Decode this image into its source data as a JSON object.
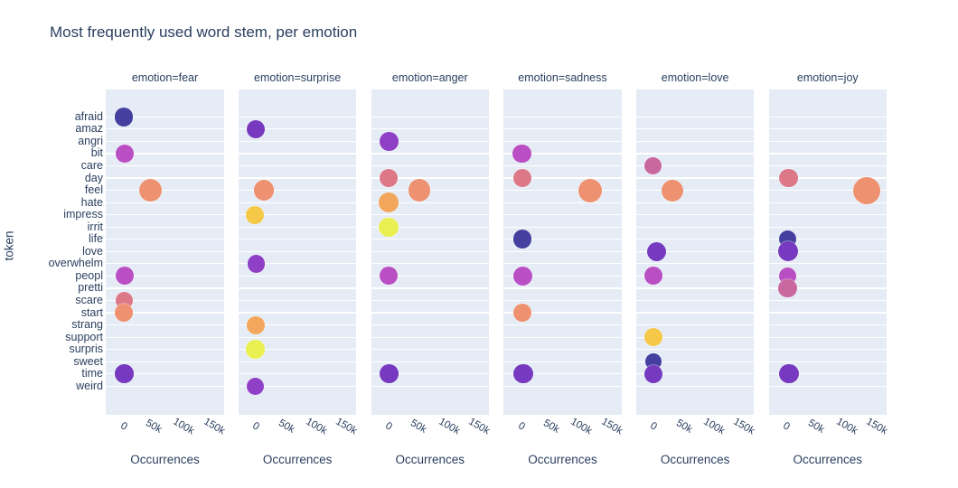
{
  "chart_data": {
    "type": "scatter",
    "title": "Most frequently used word stem, per emotion",
    "xlabel": "Occurrences",
    "ylabel": "token",
    "grid": "horizontal-white-lines",
    "legend": "none",
    "plot_bg": "#e5ecf6",
    "grid_color": "#ffffff",
    "text_color": "#2a3f5f",
    "xlim": [
      -23100,
      172400
    ],
    "x_ticks": [
      {
        "label": "0",
        "value": 0
      },
      {
        "label": "50k",
        "value": 50000
      },
      {
        "label": "100k",
        "value": 100000
      },
      {
        "label": "150k",
        "value": 150000
      }
    ],
    "y_categories": [
      "afraid",
      "amaz",
      "angri",
      "bit",
      "care",
      "day",
      "feel",
      "hate",
      "impress",
      "irrit",
      "life",
      "love",
      "overwhelm",
      "peopl",
      "pretti",
      "scare",
      "start",
      "strang",
      "support",
      "surpris",
      "sweet",
      "time",
      "weird"
    ],
    "marker_palette": [
      "#453fa0",
      "#7639bf",
      "#9040c6",
      "#b94fc3",
      "#c8689f",
      "#dc7888",
      "#ee9170",
      "#f2a75c",
      "#f5c947",
      "#ebf052"
    ],
    "facets": [
      {
        "label": "emotion=fear",
        "emotion": "fear",
        "points": [
          {
            "token": "afraid",
            "occurrences": 6500,
            "radius": 10.3
          },
          {
            "token": "bit",
            "occurrences": 8000,
            "radius": 10
          },
          {
            "token": "feel",
            "occurrences": 50000,
            "radius": 12.5
          },
          {
            "token": "peopl",
            "occurrences": 7500,
            "radius": 10
          },
          {
            "token": "scare",
            "occurrences": 6500,
            "radius": 9.5
          },
          {
            "token": "start",
            "occurrences": 6500,
            "radius": 10
          },
          {
            "token": "time",
            "occurrences": 7000,
            "radius": 10.3
          }
        ]
      },
      {
        "label": "emotion=surprise",
        "emotion": "surprise",
        "points": [
          {
            "token": "amaz",
            "occurrences": 5500,
            "radius": 10.3
          },
          {
            "token": "feel",
            "occurrences": 19000,
            "radius": 11.3
          },
          {
            "token": "impress",
            "occurrences": 4000,
            "radius": 10
          },
          {
            "token": "overwhelm",
            "occurrences": 6000,
            "radius": 9.7
          },
          {
            "token": "strang",
            "occurrences": 5000,
            "radius": 10
          },
          {
            "token": "surpris",
            "occurrences": 5000,
            "radius": 10.3
          },
          {
            "token": "weird",
            "occurrences": 5000,
            "radius": 9.7
          }
        ]
      },
      {
        "label": "emotion=anger",
        "emotion": "anger",
        "points": [
          {
            "token": "angri",
            "occurrences": 6500,
            "radius": 10.3
          },
          {
            "token": "day",
            "occurrences": 6500,
            "radius": 10
          },
          {
            "token": "feel",
            "occurrences": 57000,
            "radius": 12.3
          },
          {
            "token": "hate",
            "occurrences": 6000,
            "radius": 10.7
          },
          {
            "token": "irrit",
            "occurrences": 6000,
            "radius": 10.7
          },
          {
            "token": "peopl",
            "occurrences": 6500,
            "radius": 10
          },
          {
            "token": "time",
            "occurrences": 6500,
            "radius": 10.3
          }
        ]
      },
      {
        "label": "emotion=sadness",
        "emotion": "sadness",
        "points": [
          {
            "token": "bit",
            "occurrences": 7500,
            "radius": 10.3
          },
          {
            "token": "day",
            "occurrences": 8000,
            "radius": 10.3
          },
          {
            "token": "feel",
            "occurrences": 120000,
            "radius": 13
          },
          {
            "token": "life",
            "occurrences": 8000,
            "radius": 10.3
          },
          {
            "token": "peopl",
            "occurrences": 8000,
            "radius": 10.5
          },
          {
            "token": "start",
            "occurrences": 7500,
            "radius": 10
          },
          {
            "token": "time",
            "occurrences": 9500,
            "radius": 10.7
          }
        ]
      },
      {
        "label": "emotion=love",
        "emotion": "love",
        "points": [
          {
            "token": "care",
            "occurrences": 5000,
            "radius": 9.7
          },
          {
            "token": "feel",
            "occurrences": 37000,
            "radius": 12
          },
          {
            "token": "love",
            "occurrences": 11000,
            "radius": 10.7
          },
          {
            "token": "peopl",
            "occurrences": 5000,
            "radius": 10
          },
          {
            "token": "support",
            "occurrences": 5500,
            "radius": 10.3
          },
          {
            "token": "sweet",
            "occurrences": 5500,
            "radius": 9.3
          },
          {
            "token": "time",
            "occurrences": 5000,
            "radius": 10
          }
        ]
      },
      {
        "label": "emotion=joy",
        "emotion": "joy",
        "points": [
          {
            "token": "day",
            "occurrences": 9500,
            "radius": 10.3
          },
          {
            "token": "feel",
            "occurrences": 139000,
            "radius": 15
          },
          {
            "token": "life",
            "occurrences": 8000,
            "radius": 9.5
          },
          {
            "token": "love",
            "occurrences": 9500,
            "radius": 11
          },
          {
            "token": "peopl",
            "occurrences": 8000,
            "radius": 9.7
          },
          {
            "token": "pretti",
            "occurrences": 8000,
            "radius": 10.3
          },
          {
            "token": "time",
            "occurrences": 10500,
            "radius": 10.7
          }
        ]
      }
    ]
  }
}
